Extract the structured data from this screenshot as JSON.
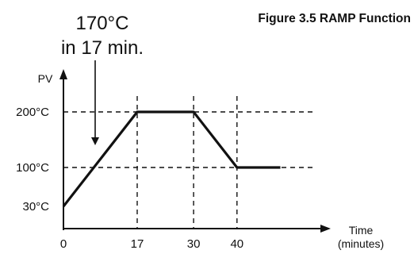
{
  "figure_title": "Figure 3.5  RAMP Function",
  "chart_data": {
    "type": "line",
    "title": "Figure 3.5  RAMP Function",
    "ylabel": "PV",
    "xlabel_lines": [
      "Time",
      "(minutes)"
    ],
    "x": [
      0,
      17,
      30,
      40,
      50
    ],
    "y": [
      30,
      200,
      200,
      100,
      100
    ],
    "xlim": [
      0,
      50
    ],
    "ylim": [
      0,
      250
    ],
    "x_ticks": [
      0,
      17,
      30,
      40
    ],
    "x_tick_labels": [
      "0",
      "17",
      "30",
      "40"
    ],
    "y_ticks": [
      30,
      100,
      200
    ],
    "y_tick_labels": [
      "30°C",
      "100°C",
      "200°C"
    ],
    "guide_lines": {
      "vertical_x": [
        17,
        30,
        40
      ],
      "horizontal_y": [
        100,
        200
      ]
    },
    "annotation": {
      "lines": [
        "170°C",
        "in 17 min."
      ],
      "arrow_target": [
        7,
        200
      ]
    },
    "grid": false,
    "legend": "none"
  }
}
